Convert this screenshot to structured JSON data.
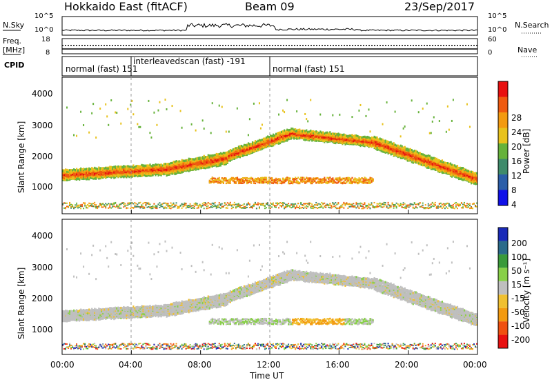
{
  "header": {
    "station": "Hokkaido East (fitACF)",
    "beam": "Beam 09",
    "date": "23/Sep/2017"
  },
  "top_panels": {
    "nsky_label": "N.Sky",
    "nsky_ticks": [
      "10^5",
      "10^0"
    ],
    "nsearch_label": "N.Search",
    "nsearch_ticks": [
      "10^5",
      "10^0"
    ],
    "freq_label_1": "Freq.",
    "freq_label_2": "[MHz]",
    "freq_ticks": [
      "18",
      "8"
    ],
    "nave_label": "Nave",
    "nave_ticks": [
      "60",
      "0"
    ],
    "cpid_label": "CPID",
    "cpid_segments": [
      {
        "text": "normal (fast) 151"
      },
      {
        "text": "interleavedscan (fast) -191"
      },
      {
        "text": "normal (fast) 151"
      }
    ]
  },
  "chart_data": [
    {
      "type": "heatmap",
      "name": "power-panel",
      "ylabel": "Slant Range [km]",
      "yticks": [
        "1000",
        "2000",
        "3000",
        "4000"
      ],
      "colorbar_label": "Power [dB]",
      "colorbar_ticks": [
        "4",
        "8",
        "12",
        "16",
        "20",
        "24",
        "28"
      ],
      "colors": [
        "#1010e8",
        "#2a5da8",
        "#3e8a6a",
        "#66b23a",
        "#e8c21c",
        "#f39a10",
        "#ef5a10",
        "#e81010"
      ]
    },
    {
      "type": "heatmap",
      "name": "velocity-panel",
      "ylabel": "Slant Range [km]",
      "yticks": [
        "1000",
        "2000",
        "3000",
        "4000"
      ],
      "colorbar_label": "Velocity [m s⁻¹]",
      "colorbar_ticks": [
        "200",
        "100",
        "50",
        "15",
        "-15",
        "-50",
        "-100",
        "-200"
      ],
      "colors": [
        "#1a2ab8",
        "#2a6a8a",
        "#3a9a3a",
        "#88d048",
        "#bfbfbf",
        "#f0c030",
        "#f39a10",
        "#f05010",
        "#e81010"
      ]
    }
  ],
  "x_axis": {
    "ticks": [
      "00:00",
      "04:00",
      "08:00",
      "12:00",
      "16:00",
      "20:00",
      "00:00"
    ],
    "label": "Time UT"
  }
}
